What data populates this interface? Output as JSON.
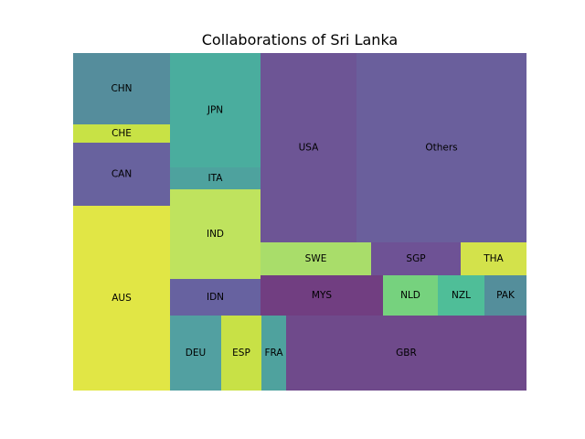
{
  "chart_data": {
    "type": "treemap",
    "title": "Collaborations of Sri Lanka",
    "cells": [
      {
        "label": "CHN",
        "color": "#558d9c"
      },
      {
        "label": "CHE",
        "color": "#c8e245"
      },
      {
        "label": "CAN",
        "color": "#68629e"
      },
      {
        "label": "AUS",
        "color": "#e1e645"
      },
      {
        "label": "JPN",
        "color": "#4aad9e"
      },
      {
        "label": "ITA",
        "color": "#4ea29e"
      },
      {
        "label": "IND",
        "color": "#bfe35e"
      },
      {
        "label": "IDN",
        "color": "#6762a0"
      },
      {
        "label": "DEU",
        "color": "#52a0a1"
      },
      {
        "label": "ESP",
        "color": "#c8e146"
      },
      {
        "label": "FRA",
        "color": "#4fa29e"
      },
      {
        "label": "USA",
        "color": "#6d5595"
      },
      {
        "label": "Others",
        "color": "#6a5f9c"
      },
      {
        "label": "SWE",
        "color": "#a9dd6a"
      },
      {
        "label": "SGP",
        "color": "#6e5295"
      },
      {
        "label": "THA",
        "color": "#d3e24b"
      },
      {
        "label": "MYS",
        "color": "#713e81"
      },
      {
        "label": "NLD",
        "color": "#76d27e"
      },
      {
        "label": "NZL",
        "color": "#4fbe98"
      },
      {
        "label": "PAK",
        "color": "#548e9b"
      },
      {
        "label": "GBR",
        "color": "#6f4a8b"
      }
    ]
  }
}
